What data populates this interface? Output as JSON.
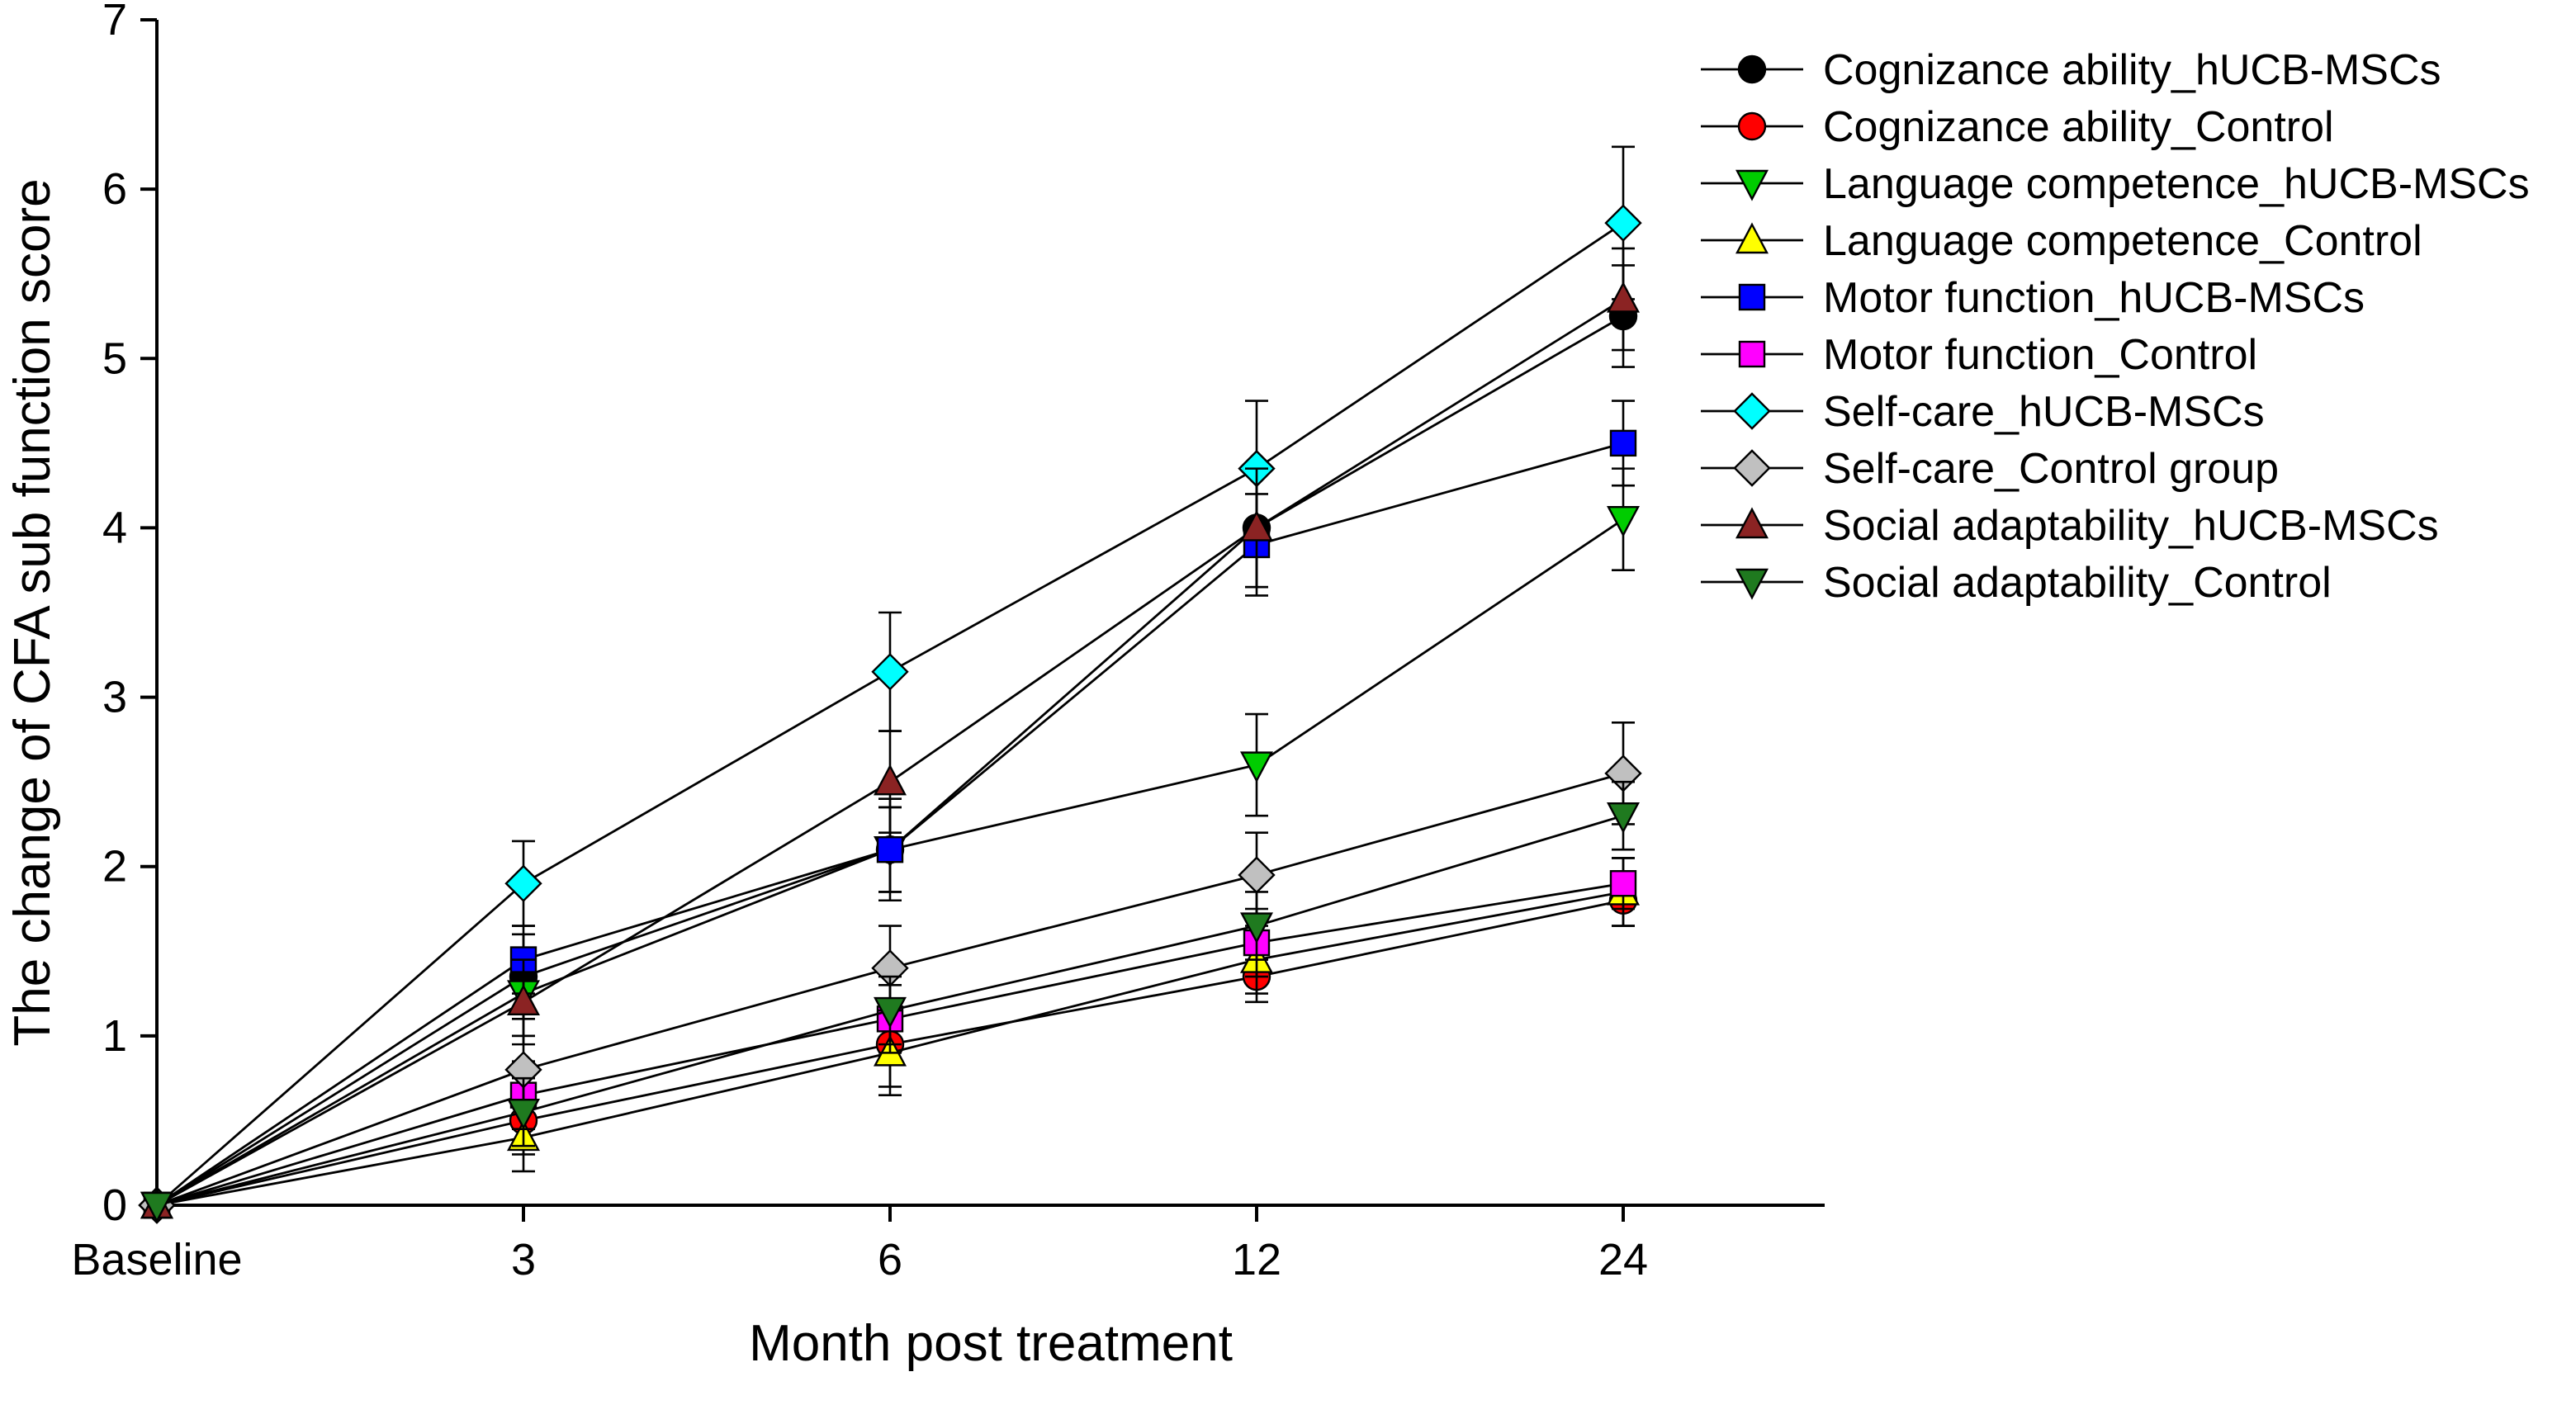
{
  "figure": {
    "background": "#ffffff"
  },
  "chart_data": {
    "type": "line",
    "title": "",
    "xlabel": "Month post treatment",
    "ylabel": "The change of CFA sub function score",
    "categories": [
      "Baseline",
      "3",
      "6",
      "12",
      "24"
    ],
    "ylim": [
      0,
      7
    ],
    "yticks": [
      0,
      1,
      2,
      3,
      4,
      5,
      6,
      7
    ],
    "grid": false,
    "legend_position": "top-right",
    "line_color": "#000000",
    "error_bars": true,
    "series": [
      {
        "name": "Cognizance ability_hUCB-MSCs",
        "marker": "circle",
        "color": "#000000",
        "values": [
          0,
          1.35,
          2.1,
          4.0,
          5.25
        ],
        "errors": [
          0,
          0.25,
          0.25,
          0.35,
          0.3
        ]
      },
      {
        "name": "Cognizance ability_Control",
        "marker": "circle",
        "color": "#ff0000",
        "values": [
          0,
          0.5,
          0.95,
          1.35,
          1.8
        ],
        "errors": [
          0,
          0.2,
          0.25,
          0.15,
          0.15
        ]
      },
      {
        "name": "Language competence_hUCB-MSCs",
        "marker": "triangle-down",
        "color": "#00cc00",
        "values": [
          0,
          1.25,
          2.1,
          2.6,
          4.05
        ],
        "errors": [
          0,
          0.25,
          0.3,
          0.3,
          0.3
        ]
      },
      {
        "name": "Language competence_Control",
        "marker": "triangle-up",
        "color": "#ffff00",
        "values": [
          0,
          0.4,
          0.9,
          1.45,
          1.85
        ],
        "errors": [
          0,
          0.2,
          0.25,
          0.2,
          0.2
        ]
      },
      {
        "name": "Motor function_hUCB-MSCs",
        "marker": "square",
        "color": "#0000ff",
        "values": [
          0,
          1.45,
          2.1,
          3.9,
          4.5
        ],
        "errors": [
          0,
          0.2,
          0.25,
          0.3,
          0.25
        ]
      },
      {
        "name": "Motor function_Control",
        "marker": "square",
        "color": "#ff00ff",
        "values": [
          0,
          0.65,
          1.1,
          1.55,
          1.9
        ],
        "errors": [
          0,
          0.2,
          0.2,
          0.2,
          0.15
        ]
      },
      {
        "name": "Self-care_hUCB-MSCs",
        "marker": "diamond",
        "color": "#00ffff",
        "values": [
          0,
          1.9,
          3.15,
          4.35,
          5.8
        ],
        "errors": [
          0,
          0.25,
          0.35,
          0.4,
          0.45
        ]
      },
      {
        "name": "Self-care_Control group",
        "marker": "diamond",
        "color": "#c0c0c0",
        "values": [
          0,
          0.8,
          1.4,
          1.95,
          2.55
        ],
        "errors": [
          0,
          0.2,
          0.25,
          0.25,
          0.3
        ]
      },
      {
        "name": "Social adaptability_hUCB-MSCs",
        "marker": "triangle-up",
        "color": "#8b2323",
        "values": [
          0,
          1.2,
          2.5,
          4.0,
          5.35
        ],
        "errors": [
          0,
          0.25,
          0.3,
          0.35,
          0.3
        ]
      },
      {
        "name": "Social adaptability_Control",
        "marker": "triangle-down",
        "color": "#1f7a1f",
        "values": [
          0,
          0.55,
          1.15,
          1.65,
          2.3
        ],
        "errors": [
          0,
          0.2,
          0.2,
          0.2,
          0.2
        ]
      }
    ]
  }
}
